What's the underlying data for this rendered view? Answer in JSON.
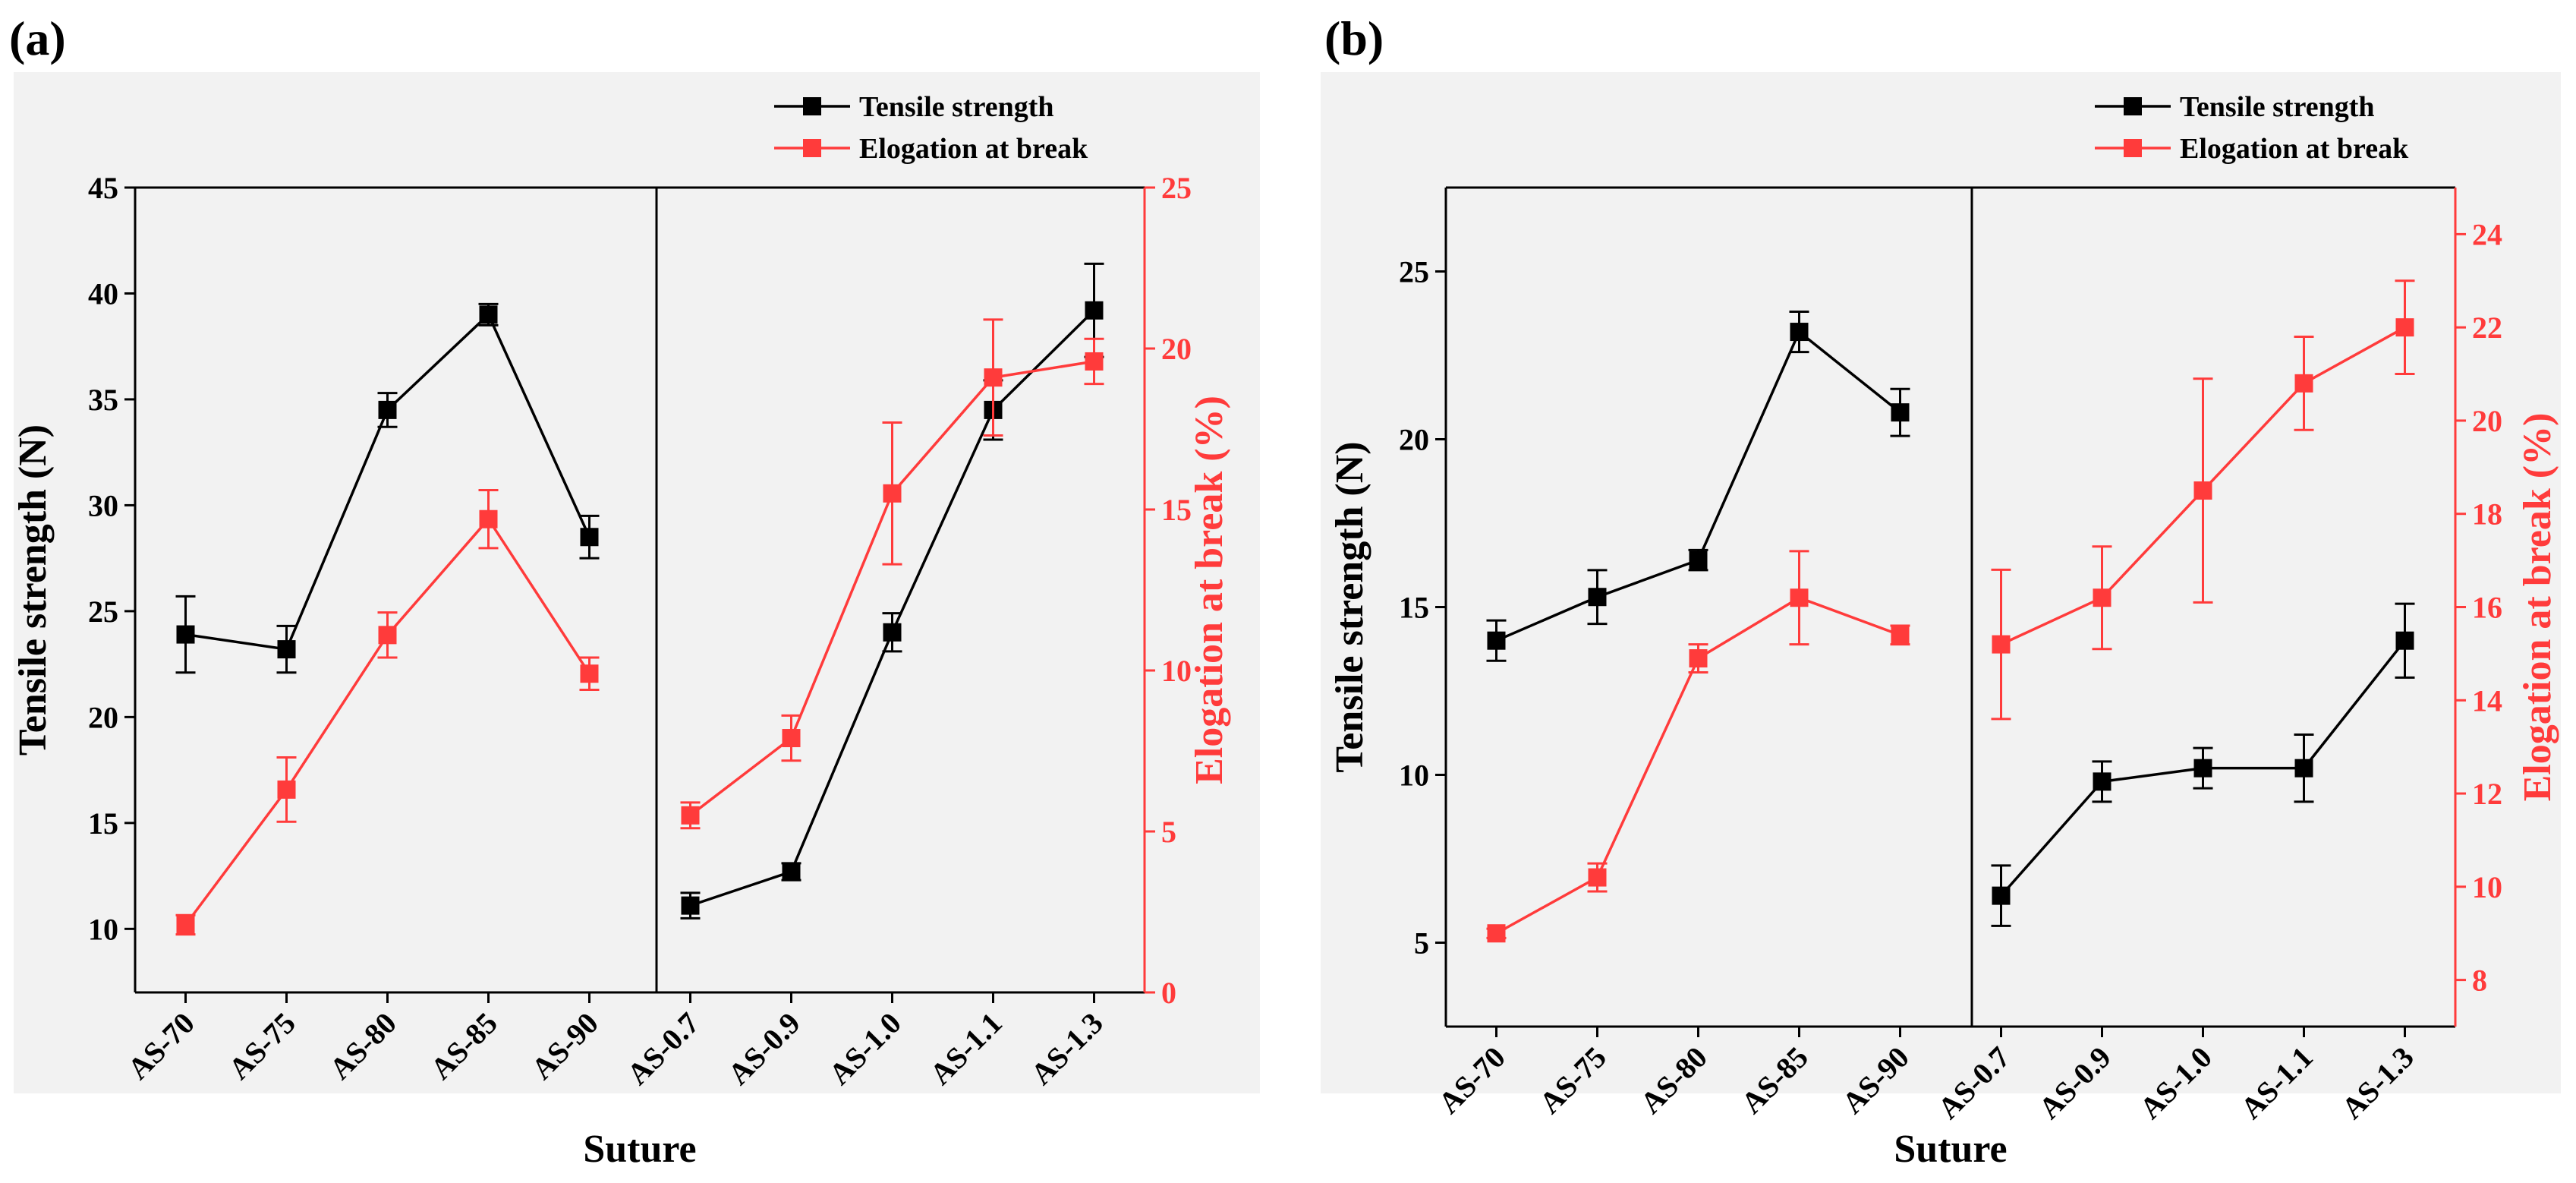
{
  "colors": {
    "tensile": "#000000",
    "elongation": "#ff3b3b"
  },
  "chart_data": [
    {
      "type": "line",
      "panel_label": "(a)",
      "xlabel": "Suture",
      "ylabel": "Tensile strength (N)",
      "y2label": "Elogation at break (%)",
      "categories": [
        "AS-70",
        "AS-75",
        "AS-80",
        "AS-85",
        "AS-90",
        "AS-0.7",
        "AS-0.9",
        "AS-1.0",
        "AS-1.1",
        "AS-1.3"
      ],
      "ylim": [
        7,
        45
      ],
      "yticks": [
        "10",
        "15",
        "20",
        "25",
        "30",
        "35",
        "40",
        "45"
      ],
      "y2lim": [
        0,
        25
      ],
      "y2ticks": [
        "0",
        "5",
        "10",
        "15",
        "20",
        "25"
      ],
      "legend": [
        "Tensile strength",
        "Elogation at break"
      ],
      "series": [
        {
          "name": "Tensile strength",
          "axis": "left",
          "values": [
            23.9,
            23.2,
            34.5,
            39.0,
            28.5,
            11.1,
            12.7,
            24.0,
            34.5,
            39.2
          ],
          "errors": [
            1.8,
            1.1,
            0.8,
            0.5,
            1.0,
            0.6,
            0.4,
            0.9,
            1.4,
            2.2
          ]
        },
        {
          "name": "Elogation at break",
          "axis": "right",
          "values": [
            2.1,
            6.3,
            11.1,
            14.7,
            9.9,
            5.5,
            7.9,
            15.5,
            19.1,
            19.6
          ],
          "errors": [
            0.3,
            1.0,
            0.7,
            0.9,
            0.5,
            0.4,
            0.7,
            2.2,
            1.8,
            0.7
          ]
        }
      ]
    },
    {
      "type": "line",
      "panel_label": "(b)",
      "xlabel": "Suture",
      "ylabel": "Tensile strength (N)",
      "y2label": "Elogation at break (%)",
      "categories": [
        "AS-70",
        "AS-75",
        "AS-80",
        "AS-85",
        "AS-90",
        "AS-0.7",
        "AS-0.9",
        "AS-1.0",
        "AS-1.1",
        "AS-1.3"
      ],
      "ylim": [
        2.5,
        27.5
      ],
      "yticks": [
        "5",
        "10",
        "15",
        "20",
        "25"
      ],
      "y2lim": [
        7,
        25
      ],
      "y2ticks": [
        "8",
        "10",
        "12",
        "14",
        "16",
        "18",
        "20",
        "22",
        "24"
      ],
      "legend": [
        "Tensile strength",
        "Elogation at break"
      ],
      "series": [
        {
          "name": "Tensile strength",
          "axis": "left",
          "values": [
            14.0,
            15.3,
            16.4,
            23.2,
            20.8,
            6.4,
            9.8,
            10.2,
            10.2,
            14.0
          ],
          "errors": [
            0.6,
            0.8,
            0.3,
            0.6,
            0.7,
            0.9,
            0.6,
            0.6,
            1.0,
            1.1
          ]
        },
        {
          "name": "Elogation at break",
          "axis": "right",
          "values": [
            9.0,
            10.2,
            14.9,
            16.2,
            15.4,
            15.2,
            16.2,
            18.5,
            20.8,
            22.0
          ],
          "errors": [
            0.1,
            0.3,
            0.3,
            1.0,
            0.2,
            1.6,
            1.1,
            2.4,
            1.0,
            1.0
          ]
        }
      ]
    }
  ]
}
